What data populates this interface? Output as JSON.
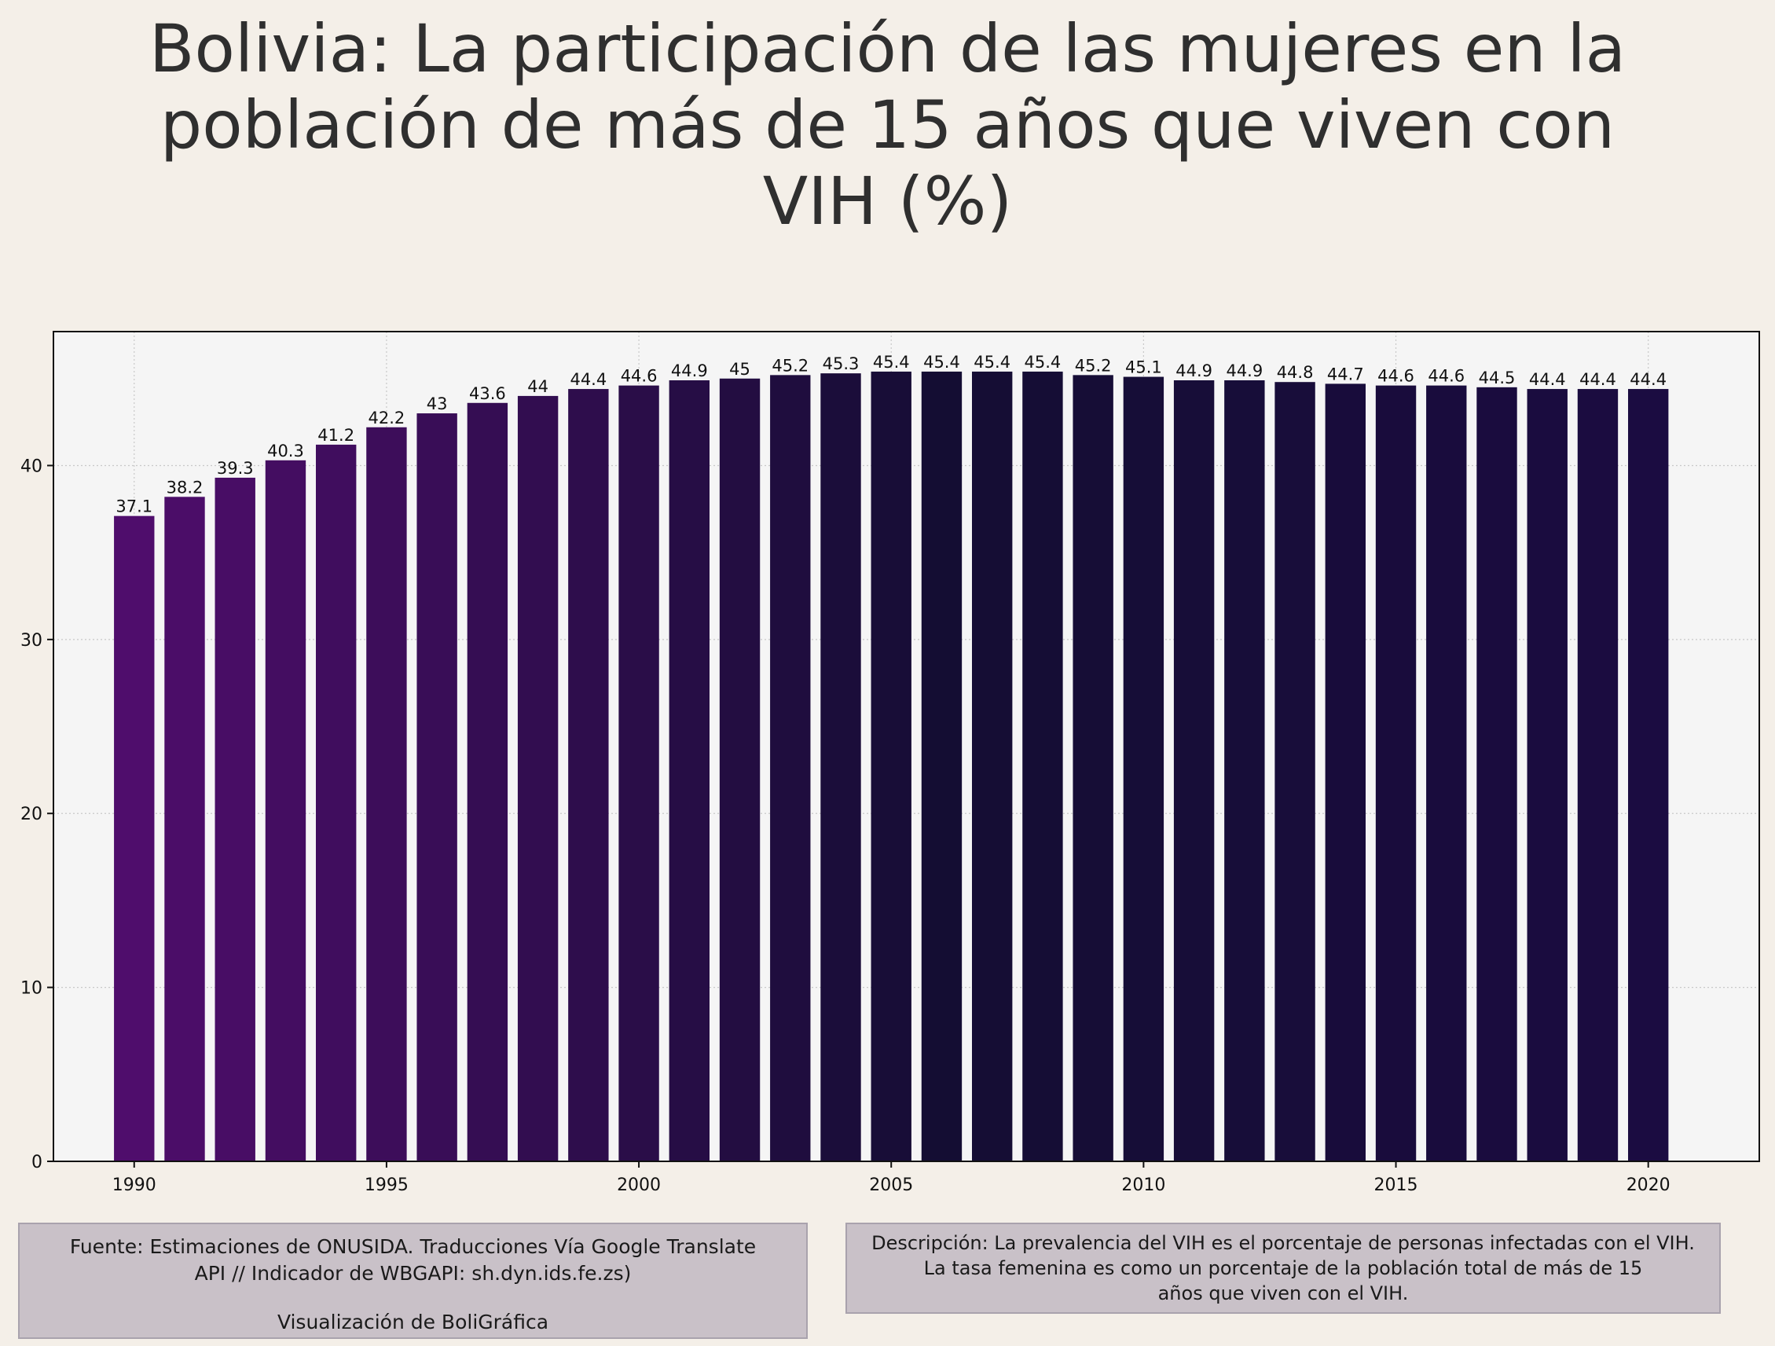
{
  "title_lines": [
    "Bolivia:  La participación de las mujeres en la",
    "población de más de 15 años que viven con",
    "VIH (%)"
  ],
  "footer": {
    "source_lines": [
      "Fuente: Estimaciones de ONUSIDA. Traducciones Vía Google Translate",
      "API // Indicador de WBGAPI: sh.dyn.ids.fe.zs)"
    ],
    "credit": "Visualización de BoliGráfica",
    "description_lines": [
      "Descripción: La prevalencia del VIH es el porcentaje de personas infectadas con el VIH.",
      "La tasa femenina es como un porcentaje de la población total de más de 15",
      "años que viven con el VIH."
    ]
  },
  "colors": {
    "background": "#f4efe8",
    "plot_background": "#f5f5f5",
    "bar_start": "#4f0d6c",
    "bar_dark": "#140d33",
    "bar_end": "#1b0c41"
  },
  "chart_data": {
    "type": "bar",
    "x": [
      1990,
      1991,
      1992,
      1993,
      1994,
      1995,
      1996,
      1997,
      1998,
      1999,
      2000,
      2001,
      2002,
      2003,
      2004,
      2005,
      2006,
      2007,
      2008,
      2009,
      2010,
      2011,
      2012,
      2013,
      2014,
      2015,
      2016,
      2017,
      2018,
      2019,
      2020
    ],
    "values": [
      37.1,
      38.2,
      39.3,
      40.3,
      41.2,
      42.2,
      43,
      43.6,
      44,
      44.4,
      44.6,
      44.9,
      45,
      45.2,
      45.3,
      45.4,
      45.4,
      45.4,
      45.4,
      45.2,
      45.1,
      44.9,
      44.9,
      44.8,
      44.7,
      44.6,
      44.6,
      44.5,
      44.4,
      44.4,
      44.4
    ],
    "labels": [
      "37.1",
      "38.2",
      "39.3",
      "40.3",
      "41.2",
      "42.2",
      "43",
      "43.6",
      "44",
      "44.4",
      "44.6",
      "44.9",
      "45",
      "45.2",
      "45.3",
      "45.4",
      "45.4",
      "45.4",
      "45.4",
      "45.2",
      "45.1",
      "44.9",
      "44.9",
      "44.8",
      "44.7",
      "44.6",
      "44.6",
      "44.5",
      "44.4",
      "44.4",
      "44.4"
    ],
    "x_ticks": [
      1990,
      1995,
      2000,
      2005,
      2010,
      2015,
      2020
    ],
    "y_ticks": [
      0,
      10,
      20,
      30,
      40
    ],
    "xlim": [
      1988.4,
      2022.2
    ],
    "ylim": [
      0,
      47.7
    ],
    "grid": true,
    "xlabel": "",
    "ylabel": ""
  }
}
